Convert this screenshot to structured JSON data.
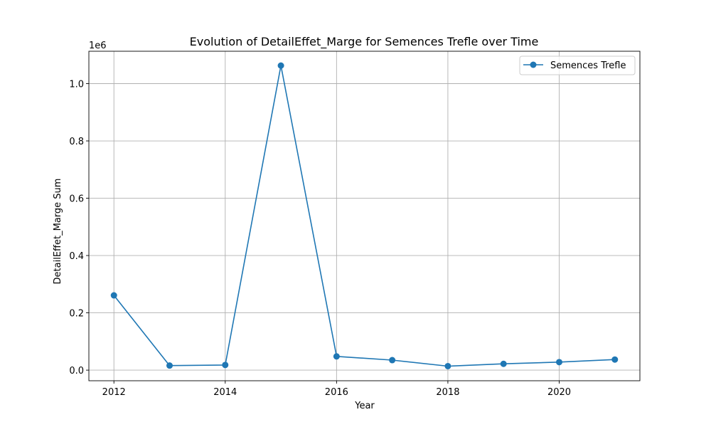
{
  "chart_data": {
    "type": "line",
    "title": "Evolution of DetailEffet_Marge for Semences Trefle over Time",
    "xlabel": "Year",
    "ylabel": "DetailEffet_Marge Sum",
    "y_offset_label": "1e6",
    "xlim": [
      2011.55,
      2021.45
    ],
    "ylim": [
      -37000,
      1113000
    ],
    "x_ticks": [
      2012,
      2014,
      2016,
      2018,
      2020
    ],
    "x_tick_labels": [
      "2012",
      "2014",
      "2016",
      "2018",
      "2020"
    ],
    "y_ticks": [
      0,
      200000,
      400000,
      600000,
      800000,
      1000000
    ],
    "y_tick_labels": [
      "0.0",
      "0.2",
      "0.4",
      "0.6",
      "0.8",
      "1.0"
    ],
    "grid": true,
    "legend_position": "upper right",
    "series": [
      {
        "name": "Semences Trefle",
        "color": "#1f77b4",
        "marker": "circle",
        "x": [
          2012,
          2013,
          2014,
          2015,
          2016,
          2017,
          2018,
          2019,
          2020,
          2021
        ],
        "y": [
          261000,
          16000,
          18000,
          1063000,
          48000,
          35000,
          14000,
          22000,
          28000,
          37000
        ]
      }
    ]
  }
}
